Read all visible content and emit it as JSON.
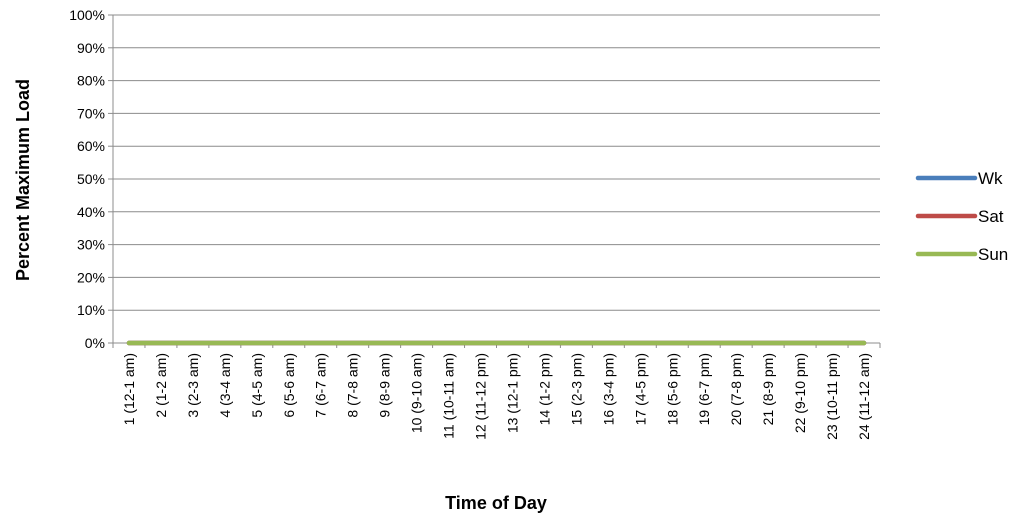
{
  "chart_data": {
    "type": "line",
    "title": "",
    "xlabel": "Time of Day",
    "ylabel": "Percent Maximum Load",
    "ylim": [
      0,
      100
    ],
    "y_ticks": [
      "0%",
      "10%",
      "20%",
      "30%",
      "40%",
      "50%",
      "60%",
      "70%",
      "80%",
      "90%",
      "100%"
    ],
    "categories": [
      "1 (12-1 am)",
      "2 (1-2 am)",
      "3 (2-3 am)",
      "4 (3-4 am)",
      "5 (4-5 am)",
      "6 (5-6 am)",
      "7 (6-7 am)",
      "8 (7-8 am)",
      "9 (8-9 am)",
      "10 (9-10 am)",
      "11 (10-11 am)",
      "12 (11-12 pm)",
      "13 (12-1 pm)",
      "14 (1-2 pm)",
      "15 (2-3 pm)",
      "16 (3-4 pm)",
      "17 (4-5 pm)",
      "18 (5-6 pm)",
      "19 (6-7 pm)",
      "20 (7-8 pm)",
      "21 (8-9 pm)",
      "22 (9-10 pm)",
      "23 (10-11 pm)",
      "24 (11-12 am)"
    ],
    "series": [
      {
        "name": "Wk",
        "color": "#4a7ebb",
        "values": [
          0,
          0,
          0,
          0,
          0,
          0,
          0,
          0,
          0,
          0,
          0,
          0,
          0,
          0,
          0,
          0,
          0,
          0,
          0,
          0,
          0,
          0,
          0,
          0
        ]
      },
      {
        "name": "Sat",
        "color": "#be4b48",
        "values": [
          0,
          0,
          0,
          0,
          0,
          0,
          0,
          0,
          0,
          0,
          0,
          0,
          0,
          0,
          0,
          0,
          0,
          0,
          0,
          0,
          0,
          0,
          0,
          0
        ]
      },
      {
        "name": "Sun",
        "color": "#98b954",
        "values": [
          0,
          0,
          0,
          0,
          0,
          0,
          0,
          0,
          0,
          0,
          0,
          0,
          0,
          0,
          0,
          0,
          0,
          0,
          0,
          0,
          0,
          0,
          0,
          0
        ]
      }
    ],
    "grid": true,
    "legend_position": "right"
  }
}
